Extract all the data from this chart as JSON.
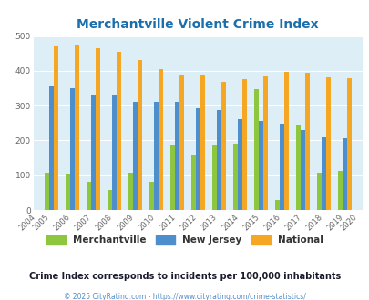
{
  "title": "Merchantville Violent Crime Index",
  "years": [
    2004,
    2005,
    2006,
    2007,
    2008,
    2009,
    2010,
    2011,
    2012,
    2013,
    2014,
    2015,
    2016,
    2017,
    2018,
    2019,
    2020
  ],
  "merchantville": [
    null,
    107,
    105,
    82,
    58,
    108,
    82,
    187,
    160,
    187,
    190,
    348,
    30,
    242,
    108,
    113,
    null
  ],
  "new_jersey": [
    null,
    355,
    350,
    330,
    330,
    312,
    310,
    310,
    292,
    288,
    262,
    255,
    248,
    230,
    210,
    207,
    null
  ],
  "national": [
    null,
    469,
    474,
    466,
    455,
    432,
    405,
    387,
    387,
    368,
    377,
    383,
    398,
    394,
    381,
    379,
    null
  ],
  "color_mv": "#8dc63f",
  "color_nj": "#4d8fcc",
  "color_nat": "#f5a623",
  "bg_color": "#ddeef6",
  "ylim": [
    0,
    500
  ],
  "yticks": [
    0,
    100,
    200,
    300,
    400,
    500
  ],
  "subtitle": "Crime Index corresponds to incidents per 100,000 inhabitants",
  "footer": "© 2025 CityRating.com - https://www.cityrating.com/crime-statistics/",
  "legend_labels": [
    "Merchantville",
    "New Jersey",
    "National"
  ],
  "title_color": "#1a6fad",
  "subtitle_color": "#1a1a2e",
  "footer_color": "#4d8fcc",
  "all_tick_years": [
    2004,
    2005,
    2006,
    2007,
    2008,
    2009,
    2010,
    2011,
    2012,
    2013,
    2014,
    2015,
    2016,
    2017,
    2018,
    2019,
    2020
  ]
}
